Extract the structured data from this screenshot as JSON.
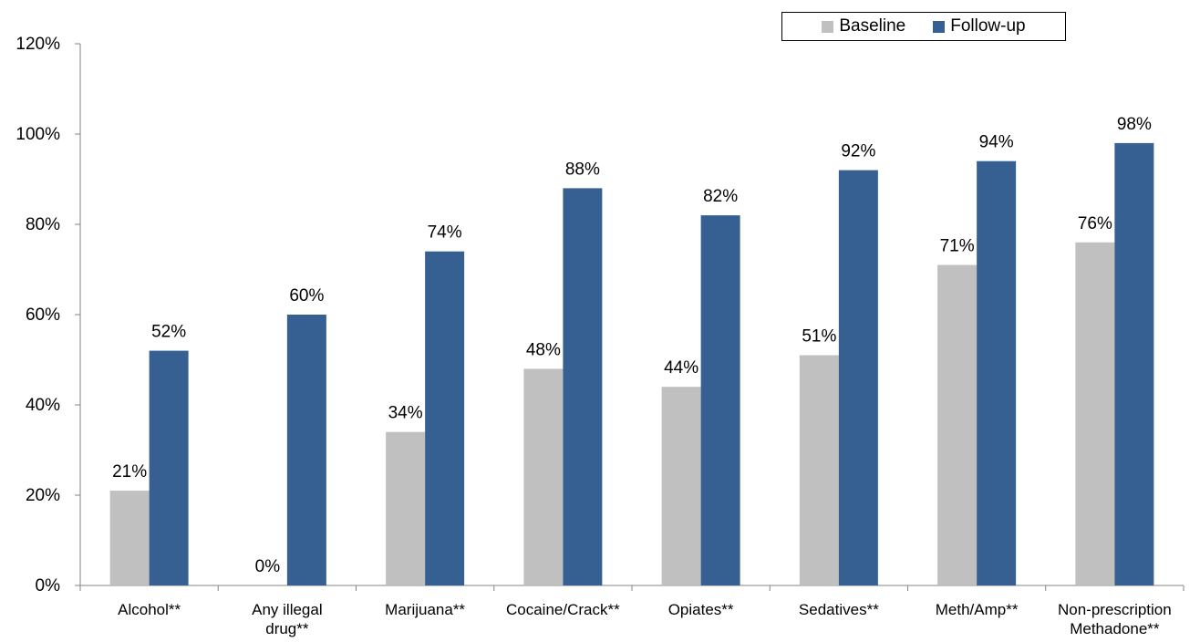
{
  "chart_data": {
    "type": "bar",
    "categories": [
      "Alcohol**",
      "Any illegal drug**",
      "Marijuana**",
      "Cocaine/Crack**",
      "Opiates**",
      "Sedatives**",
      "Meth/Amp**",
      "Non-prescription Methadone**"
    ],
    "category_lines": [
      [
        "Alcohol**"
      ],
      [
        "Any illegal",
        "drug**"
      ],
      [
        "Marijuana**"
      ],
      [
        "Cocaine/Crack**"
      ],
      [
        "Opiates**"
      ],
      [
        "Sedatives**"
      ],
      [
        "Meth/Amp**"
      ],
      [
        "Non-prescription",
        "Methadone**"
      ]
    ],
    "series": [
      {
        "name": "Baseline",
        "color": "#c0c0c0",
        "values": [
          21,
          0,
          34,
          48,
          44,
          51,
          71,
          76
        ],
        "labels": [
          "21%",
          "0%",
          "34%",
          "48%",
          "44%",
          "51%",
          "71%",
          "76%"
        ]
      },
      {
        "name": "Follow-up",
        "color": "#376092",
        "values": [
          52,
          60,
          74,
          88,
          82,
          92,
          94,
          98
        ],
        "labels": [
          "52%",
          "60%",
          "74%",
          "88%",
          "82%",
          "92%",
          "94%",
          "98%"
        ]
      }
    ],
    "ylim": [
      0,
      120
    ],
    "yticks": [
      "0%",
      "20%",
      "40%",
      "60%",
      "80%",
      "100%",
      "120%"
    ],
    "legend": "top-right",
    "grid": false,
    "title": "",
    "xlabel": "",
    "ylabel": ""
  }
}
